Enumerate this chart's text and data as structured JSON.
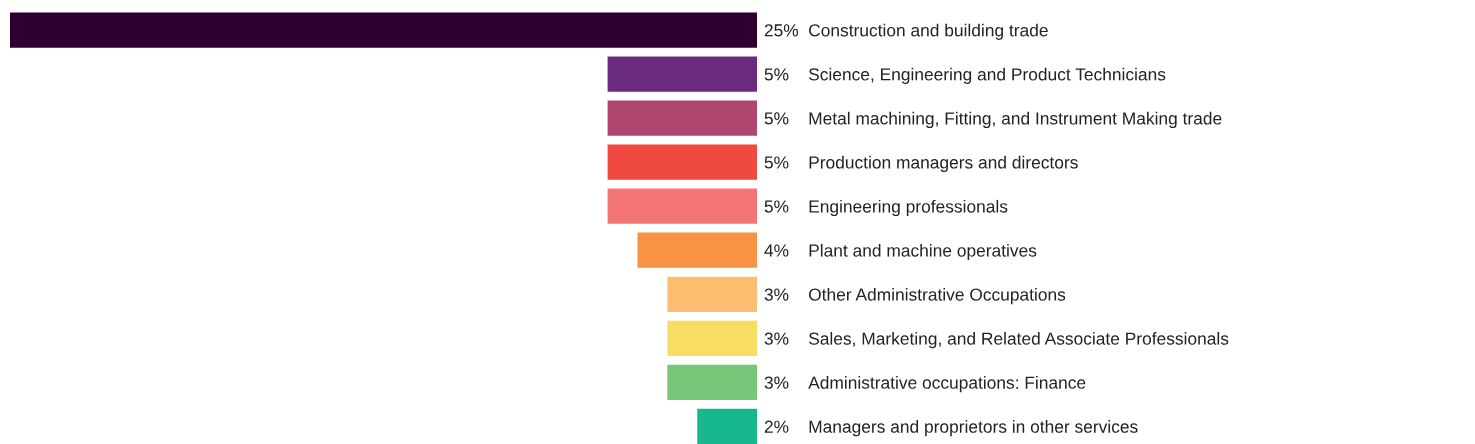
{
  "chart_data": {
    "type": "bar",
    "orientation": "horizontal",
    "categories": [
      "Construction and building trade",
      "Science, Engineering and Product Technicians",
      "Metal machining, Fitting, and Instrument Making trade",
      "Production managers and directors",
      "Engineering professionals",
      "Plant and machine operatives",
      "Other Administrative Occupations",
      "Sales, Marketing, and Related Associate Professionals",
      "Administrative occupations: Finance",
      "Managers and proprietors in other services"
    ],
    "values": [
      25,
      5,
      5,
      5,
      5,
      4,
      3,
      3,
      3,
      2
    ],
    "value_labels": [
      "25%",
      "5%",
      "5%",
      "5%",
      "5%",
      "4%",
      "3%",
      "3%",
      "3%",
      "2%"
    ],
    "colors": [
      "#2d0030",
      "#6a2a7e",
      "#b0456f",
      "#f04a40",
      "#f47575",
      "#f79344",
      "#fbbd70",
      "#f9dc62",
      "#78c679",
      "#16b78e"
    ],
    "xlim": [
      25,
      0
    ],
    "tick_labels": "y"
  }
}
